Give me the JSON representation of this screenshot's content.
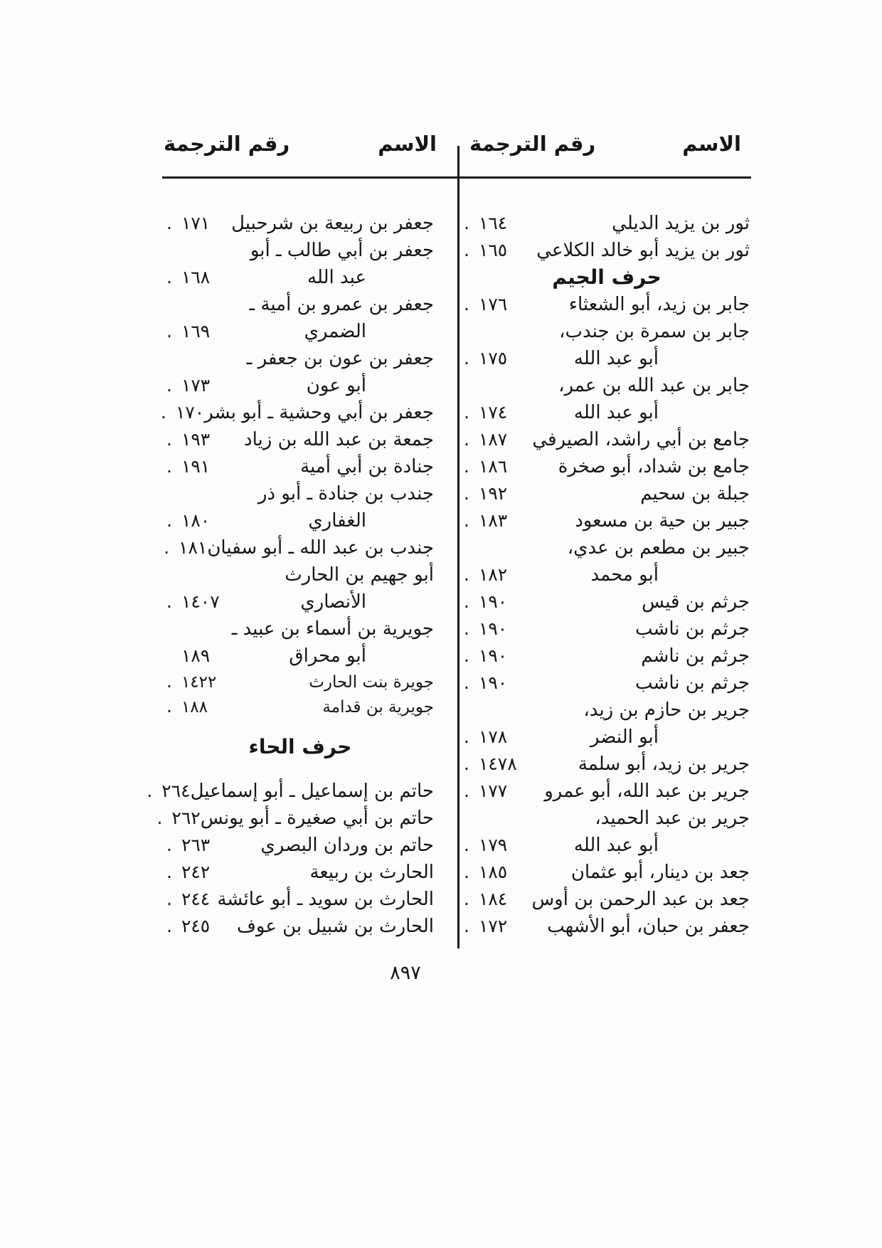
{
  "page": {
    "page_number": "٨٩٧",
    "ink_color": "#1b1b1b",
    "paper_color": "#fcfcfa"
  },
  "glyphs": {
    "dot": "."
  },
  "header_labels": {
    "name": "الاسم",
    "number": "رقم الترجمة"
  },
  "columns": {
    "right": {
      "items": [
        {
          "type": "entry",
          "lines": [
            "ثور بن يزيد الديلي"
          ],
          "num": "١٦٤"
        },
        {
          "type": "entry",
          "lines": [
            "ثور بن يزيد أبو خالد الكلاعي"
          ],
          "num": "١٦٥"
        },
        {
          "type": "section",
          "title": "حرف الجيم"
        },
        {
          "type": "entry",
          "lines": [
            "جابر بن زيد، أبو الشعثاء"
          ],
          "num": "١٧٦"
        },
        {
          "type": "entry",
          "lines": [
            "جابر بن سمرة بن جندب،",
            "أبو عبد الله"
          ],
          "num": "١٧٥"
        },
        {
          "type": "entry",
          "lines": [
            "جابر بن عبد الله بن عمر،",
            "أبو عبد الله"
          ],
          "num": "١٧٤"
        },
        {
          "type": "entry",
          "lines": [
            "جامع بن أبي راشد، الصيرفي"
          ],
          "num": "١٨٧"
        },
        {
          "type": "entry",
          "lines": [
            "جامع بن شداد، أبو صخرة"
          ],
          "num": "١٨٦"
        },
        {
          "type": "entry",
          "lines": [
            "جبلة بن سحيم"
          ],
          "num": "١٩٢"
        },
        {
          "type": "entry",
          "lines": [
            "جبير بن حية بن مسعود"
          ],
          "num": "١٨٣"
        },
        {
          "type": "entry",
          "lines": [
            "جبير بن مطعم بن عدي،",
            "أبو محمد"
          ],
          "num": "١٨٢"
        },
        {
          "type": "entry",
          "lines": [
            "جرثم بن قيس"
          ],
          "num": "١٩٠"
        },
        {
          "type": "entry",
          "lines": [
            "جرثم بن ناشب"
          ],
          "num": "١٩٠"
        },
        {
          "type": "entry",
          "lines": [
            "جرثم بن ناشم"
          ],
          "num": "١٩٠"
        },
        {
          "type": "entry",
          "lines": [
            "جرثم بن ناشب"
          ],
          "num": "١٩٠"
        },
        {
          "type": "entry",
          "lines": [
            "جرير بن حازم بن زيد،",
            "أبو النضر"
          ],
          "num": "١٧٨"
        },
        {
          "type": "entry",
          "lines": [
            "جرير بن زيد، أبو سلمة"
          ],
          "num": "١٤٧٨"
        },
        {
          "type": "entry",
          "lines": [
            "جرير بن عبد الله، أبو عمرو"
          ],
          "num": "١٧٧"
        },
        {
          "type": "entry",
          "lines": [
            "جرير بن عبد الحميد،",
            "أبو عبد الله"
          ],
          "num": "١٧٩"
        },
        {
          "type": "entry",
          "lines": [
            "جعد بن دينار، أبو عثمان"
          ],
          "num": "١٨٥"
        },
        {
          "type": "entry",
          "lines": [
            "جعد بن عبد الرحمن بن أوس"
          ],
          "num": "١٨٤"
        },
        {
          "type": "entry",
          "lines": [
            "جعفر بن حبان، أبو الأشهب"
          ],
          "num": "١٧٢"
        }
      ]
    },
    "left": {
      "items": [
        {
          "type": "entry",
          "lines": [
            "جعفر بن ربيعة بن شرحبيل"
          ],
          "num": "١٧١"
        },
        {
          "type": "entry",
          "lines": [
            "جعفر بن أبي طالب ـ أبو",
            "عبد الله"
          ],
          "num": "١٦٨"
        },
        {
          "type": "entry",
          "lines": [
            "جعفر بن عمرو بن أمية ـ",
            "الضمري"
          ],
          "num": "١٦٩"
        },
        {
          "type": "entry",
          "lines": [
            "جعفر بن عون بن جعفر ـ",
            "أبو عون"
          ],
          "num": "١٧٣"
        },
        {
          "type": "entry",
          "lines": [
            "جعفر بن أبي وحشية ـ أبو بشر"
          ],
          "num": "١٧٠"
        },
        {
          "type": "entry",
          "lines": [
            "جمعة بن عبد الله بن زياد"
          ],
          "num": "١٩٣"
        },
        {
          "type": "entry",
          "lines": [
            "جنادة بن أبي أمية"
          ],
          "num": "١٩١"
        },
        {
          "type": "entry",
          "lines": [
            "جندب بن جنادة ـ أبو ذر",
            "الغفاري"
          ],
          "num": "١٨٠"
        },
        {
          "type": "entry",
          "lines": [
            "جندب بن عبد الله ـ أبو سفيان"
          ],
          "num": "١٨١"
        },
        {
          "type": "entry",
          "lines": [
            "أبو جهيم بن الحارث",
            "الأنصاري"
          ],
          "num": "١٤٠٧"
        },
        {
          "type": "entry",
          "lines": [
            "جويرية بن أسماء بن عبيد ـ",
            "أبو محراق"
          ],
          "num": "١٨٩",
          "dot": false
        },
        {
          "type": "entry",
          "lines": [
            "جويرة بنت الحارث"
          ],
          "num": "١٤٢٢",
          "tight": true
        },
        {
          "type": "entry",
          "lines": [
            "جويرية بن قدامة"
          ],
          "num": "١٨٨",
          "tight": true
        },
        {
          "type": "section",
          "title": "حرف الحاء",
          "spaced": true
        },
        {
          "type": "entry",
          "lines": [
            "حاتم بن إسماعيل ـ أبو إسماعيل"
          ],
          "num": "٢٦٤"
        },
        {
          "type": "entry",
          "lines": [
            "حاتم بن أبي صغيرة ـ أبو يونس"
          ],
          "num": "٢٦٢"
        },
        {
          "type": "entry",
          "lines": [
            "حاتم بن وردان البصري"
          ],
          "num": "٢٦٣"
        },
        {
          "type": "entry",
          "lines": [
            "الحارث بن ربيعة"
          ],
          "num": "٢٤٢"
        },
        {
          "type": "entry",
          "lines": [
            "الحارث بن سويد ـ أبو عائشة"
          ],
          "num": "٢٤٤"
        },
        {
          "type": "entry",
          "lines": [
            "الحارث بن شبيل بن عوف"
          ],
          "num": "٢٤٥"
        }
      ]
    }
  }
}
